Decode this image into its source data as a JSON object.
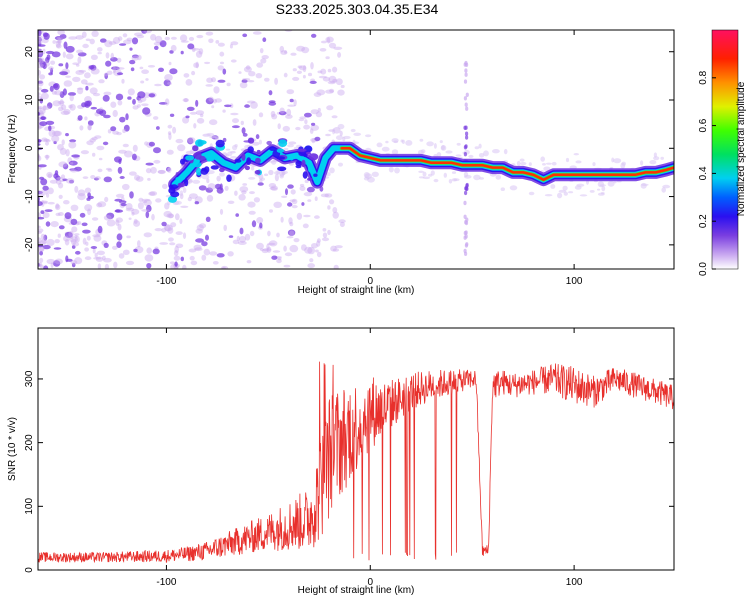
{
  "title": "S233.2025.303.04.35.E34",
  "colors": {
    "snr_line": "#e8302c",
    "axis": "#000000"
  },
  "chart_data": [
    {
      "id": "spectrogram",
      "type": "heatmap",
      "xlabel": "Height of straight line (km)",
      "ylabel": "Frequency (Hz)",
      "xlim": [
        -163,
        149
      ],
      "ylim": [
        -25,
        24.5
      ],
      "xticks": [
        -100,
        0,
        100
      ],
      "xtick_labels": [
        "-100",
        "0",
        "100"
      ],
      "yticks": [
        -20,
        -10,
        0,
        10,
        20
      ],
      "ytick_labels": [
        "-20",
        "-10",
        "0",
        "10",
        "20"
      ],
      "colorbar": {
        "label": "Normalized spectral amplitude",
        "range": [
          0,
          1
        ],
        "ticks": [
          0.0,
          0.2,
          0.4,
          0.6,
          0.8
        ],
        "tick_labels": [
          "0.0",
          "0.2",
          "0.4",
          "0.6",
          "0.8"
        ]
      },
      "ridge": {
        "x": [
          -96,
          -90,
          -84,
          -78,
          -72,
          -66,
          -60,
          -54,
          -48,
          -42,
          -36,
          -30,
          -26,
          -22,
          -18,
          -14,
          -10,
          -5,
          0,
          5,
          10,
          15,
          20,
          25,
          30,
          35,
          40,
          45,
          50,
          55,
          60,
          65,
          70,
          75,
          80,
          85,
          90,
          95,
          100,
          105,
          110,
          115,
          120,
          125,
          130,
          135,
          140,
          145,
          149
        ],
        "freq": [
          -7.5,
          -5,
          -2,
          -1,
          -3,
          -4,
          -1.5,
          -2.5,
          -0.5,
          -2,
          -1.5,
          -3,
          -7,
          -2,
          0,
          0,
          0,
          -1.5,
          -2,
          -2.5,
          -2.5,
          -2.5,
          -2.5,
          -2.5,
          -3,
          -3,
          -3,
          -3.5,
          -3.5,
          -3.5,
          -4,
          -4,
          -5,
          -5,
          -5.5,
          -6.5,
          -5.5,
          -5.5,
          -5.5,
          -5.5,
          -5.5,
          -5.5,
          -5.5,
          -5.5,
          -5.5,
          -5,
          -5,
          -4.5,
          -4
        ]
      }
    },
    {
      "id": "snr",
      "type": "line",
      "xlabel": "Height of straight line (km)",
      "ylabel": "SNR (10 * v/v)",
      "xlim": [
        -163,
        149
      ],
      "ylim": [
        0,
        380
      ],
      "xticks": [
        -100,
        0,
        100
      ],
      "xtick_labels": [
        "-100",
        "0",
        "100"
      ],
      "yticks": [
        0,
        100,
        200,
        300
      ],
      "ytick_labels": [
        "0",
        "100",
        "200",
        "300"
      ],
      "envelope": {
        "x": [
          -163,
          -130,
          -100,
          -90,
          -80,
          -70,
          -60,
          -50,
          -40,
          -30,
          -25,
          -20,
          -15,
          -10,
          -5,
          0,
          5,
          10,
          20,
          30,
          40,
          50,
          52,
          55,
          58,
          60,
          65,
          70,
          80,
          90,
          100,
          110,
          120,
          130,
          140,
          149
        ],
        "mean": [
          20,
          20,
          22,
          25,
          30,
          40,
          50,
          60,
          70,
          80,
          120,
          180,
          200,
          220,
          230,
          250,
          250,
          260,
          280,
          290,
          295,
          300,
          300,
          30,
          30,
          290,
          295,
          290,
          295,
          300,
          290,
          280,
          300,
          290,
          280,
          270
        ],
        "spread": [
          8,
          8,
          10,
          12,
          15,
          20,
          25,
          30,
          40,
          50,
          80,
          100,
          90,
          80,
          70,
          60,
          50,
          40,
          30,
          25,
          20,
          15,
          15,
          10,
          10,
          25,
          20,
          20,
          20,
          25,
          30,
          25,
          20,
          20,
          20,
          20
        ]
      }
    }
  ]
}
